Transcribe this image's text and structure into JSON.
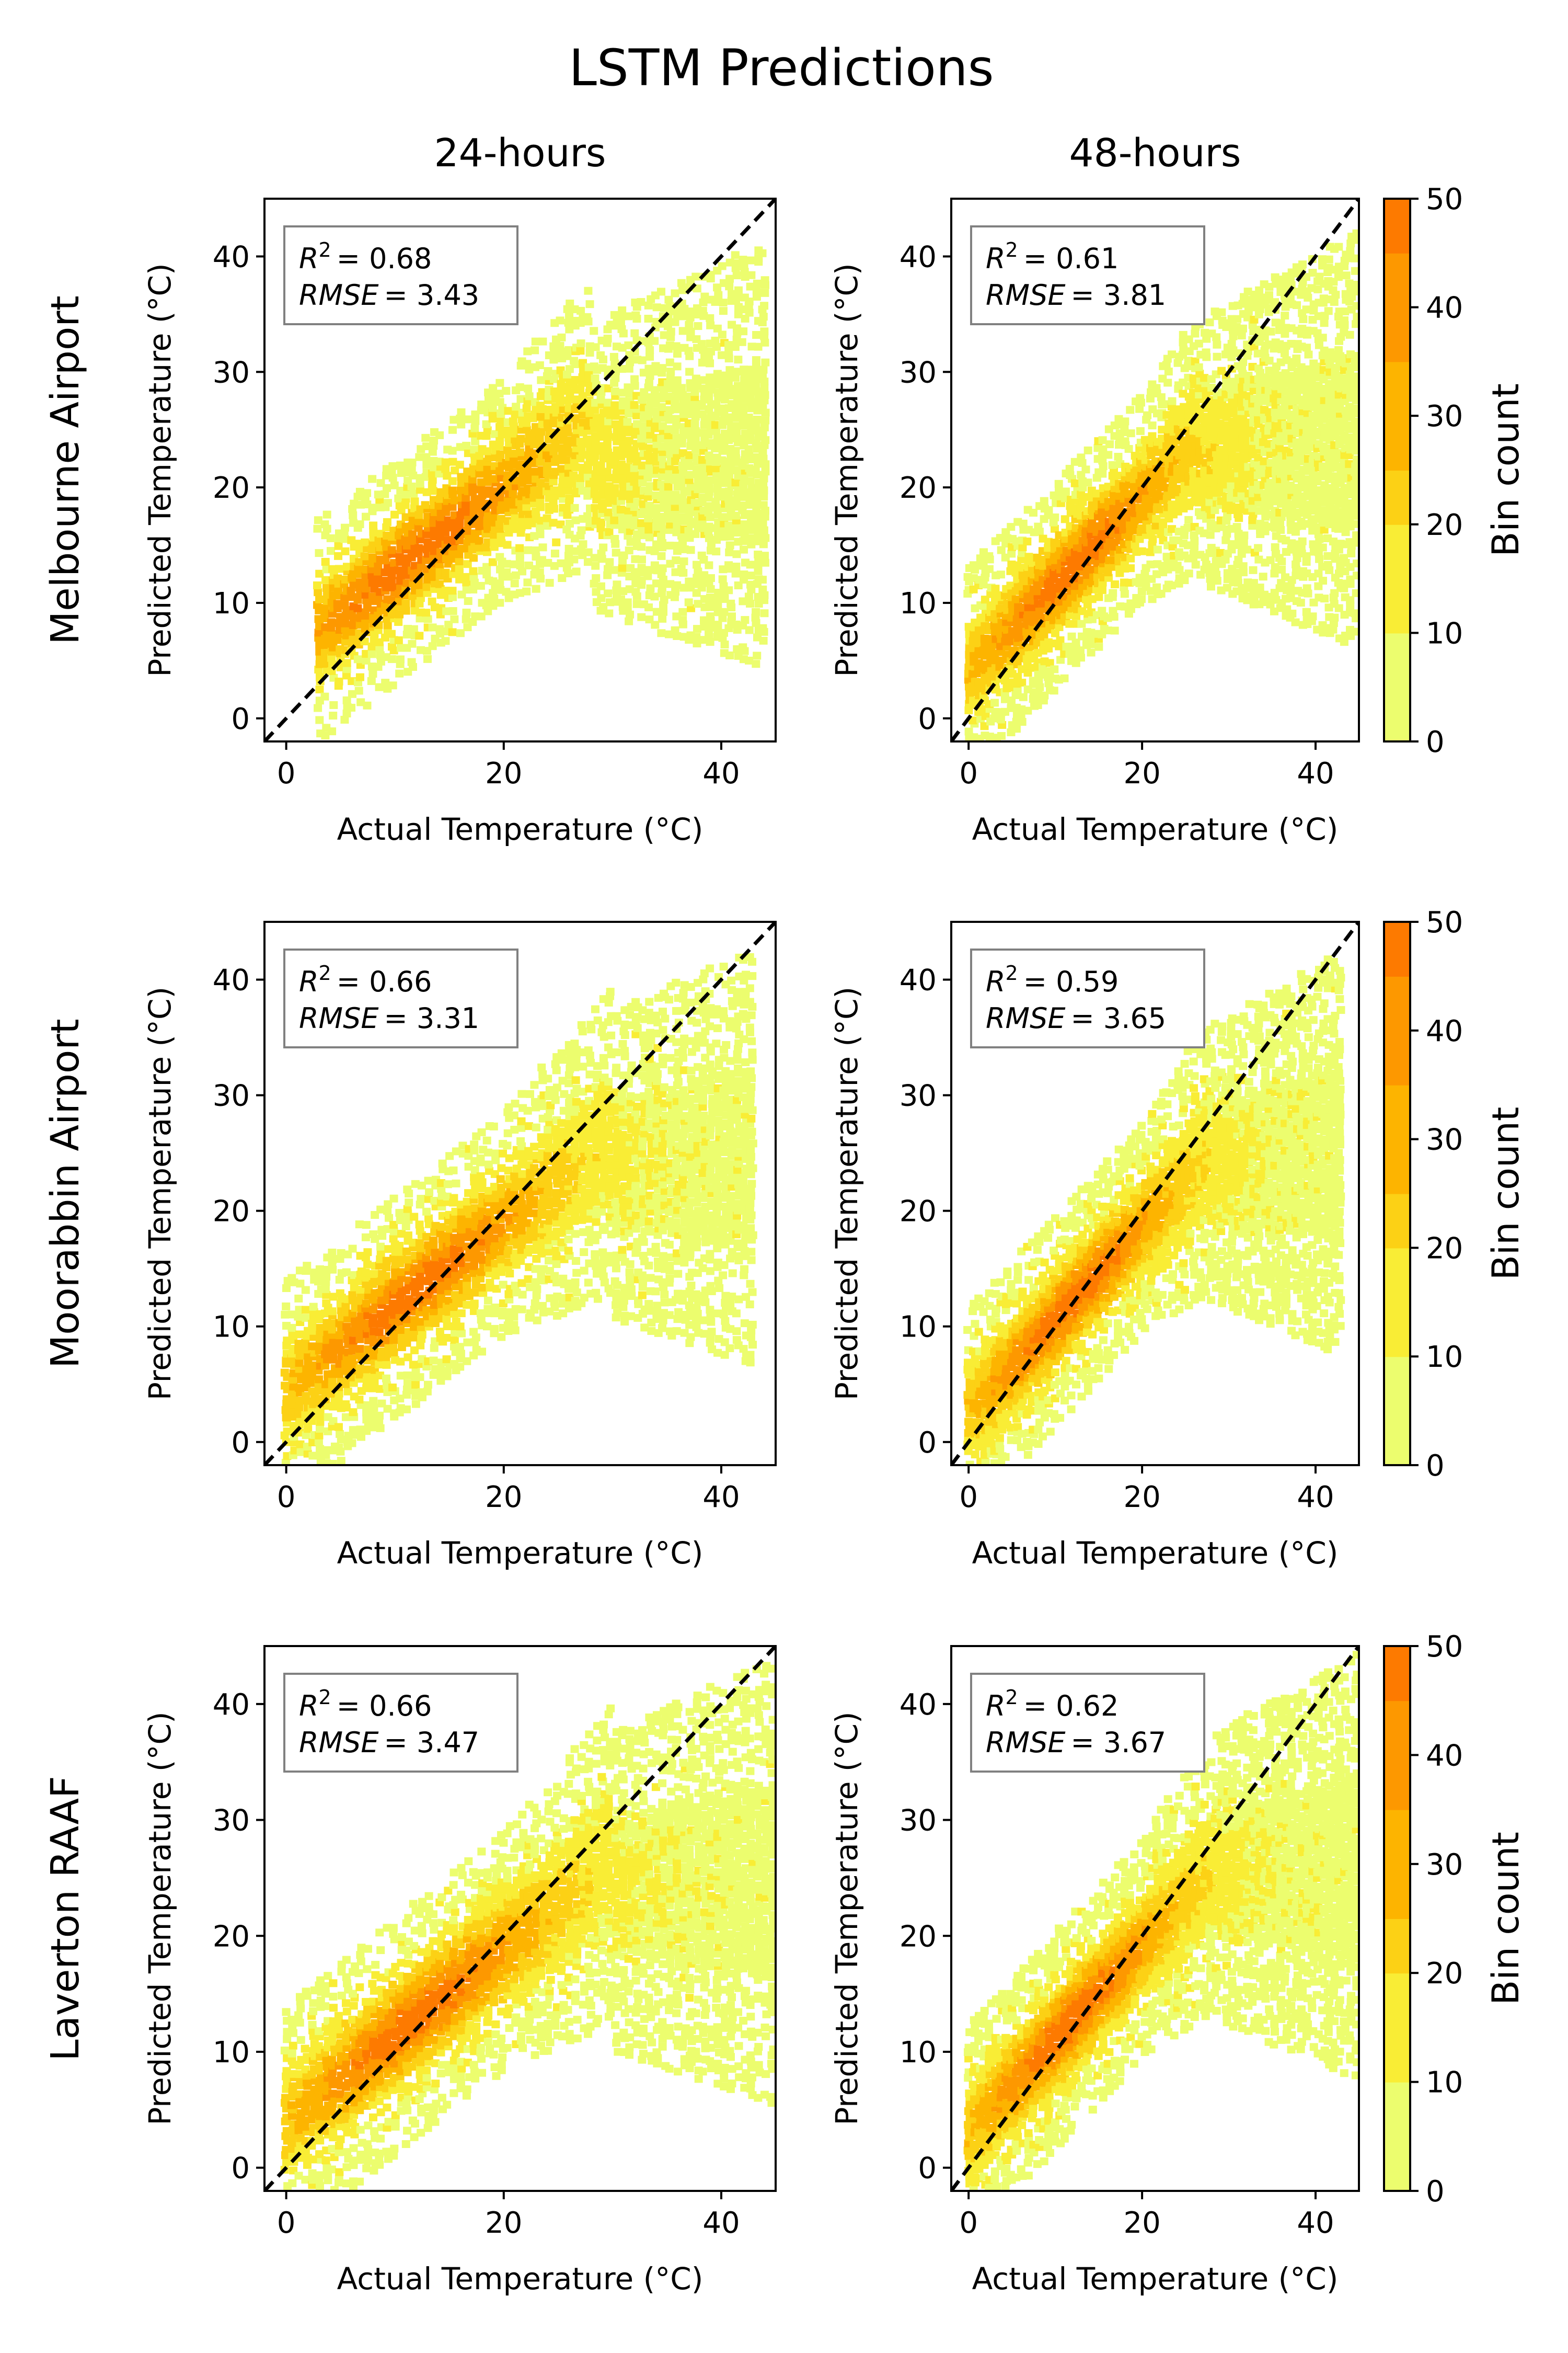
{
  "chart_data": {
    "type": "heatmap",
    "title": "LSTM Predictions",
    "column_titles": [
      "24-hours",
      "48-hours"
    ],
    "row_titles": [
      "Melbourne Airport",
      "Moorabbin Airport",
      "Laverton RAAF"
    ],
    "xlabel": "Actual Temperature (°C)",
    "ylabel": "Predicted Temperature (°C)",
    "xlim": [
      -2,
      45
    ],
    "ylim": [
      -2,
      45
    ],
    "x_ticks": [
      0,
      20,
      40
    ],
    "y_ticks": [
      0,
      10,
      20,
      30,
      40
    ],
    "reference_line": "y = x (dashed)",
    "colorbar": {
      "label": "Bin count",
      "range": [
        0,
        50
      ],
      "ticks": [
        0,
        10,
        20,
        30,
        40,
        50
      ],
      "colors": [
        "#ecfd6e",
        "#f9ed35",
        "#fcd115",
        "#fdb400",
        "#fd9800",
        "#fd7a00"
      ]
    },
    "panels": [
      {
        "row": "Melbourne Airport",
        "horizon": "24-hours",
        "r2_label": "R",
        "r2_value": "= 0.68",
        "rmse_label": "RMSE",
        "rmse_value": "= 3.43"
      },
      {
        "row": "Melbourne Airport",
        "horizon": "48-hours",
        "r2_label": "R",
        "r2_value": "= 0.61",
        "rmse_label": "RMSE",
        "rmse_value": "= 3.81"
      },
      {
        "row": "Moorabbin Airport",
        "horizon": "24-hours",
        "r2_label": "R",
        "r2_value": "= 0.66",
        "rmse_label": "RMSE",
        "rmse_value": "= 3.31"
      },
      {
        "row": "Moorabbin Airport",
        "horizon": "48-hours",
        "r2_label": "R",
        "r2_value": "= 0.59",
        "rmse_label": "RMSE",
        "rmse_value": "= 3.65"
      },
      {
        "row": "Laverton RAAF",
        "horizon": "24-hours",
        "r2_label": "R",
        "r2_value": "= 0.66",
        "rmse_label": "RMSE",
        "rmse_value": "= 3.47"
      },
      {
        "row": "Laverton RAAF",
        "horizon": "48-hours",
        "r2_label": "R",
        "r2_value": "= 0.62",
        "rmse_label": "RMSE",
        "rmse_value": "= 3.67"
      }
    ]
  }
}
